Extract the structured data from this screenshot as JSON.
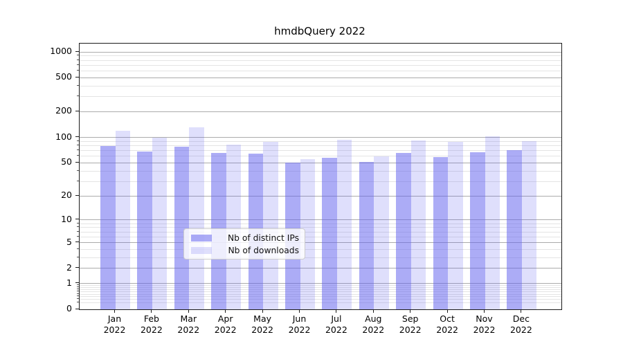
{
  "title": "hmdbQuery 2022",
  "chart_data": {
    "type": "bar",
    "title": "hmdbQuery 2022",
    "categories": [
      "Jan",
      "Feb",
      "Mar",
      "Apr",
      "May",
      "Jun",
      "Jul",
      "Aug",
      "Sep",
      "Oct",
      "Nov",
      "Dec"
    ],
    "x_tick_second_line": "2022",
    "series": [
      {
        "name": "Nb of distinct IPs",
        "color": "rgba(95,95,238,0.52)",
        "values": [
          79,
          68,
          77,
          65,
          64,
          50,
          57,
          51,
          66,
          58,
          67,
          70
        ]
      },
      {
        "name": "Nb of downloads",
        "color": "rgba(95,95,238,0.20)",
        "values": [
          119,
          100,
          131,
          82,
          88,
          55,
          93,
          60,
          92,
          88,
          102,
          90
        ]
      }
    ],
    "y_axis": {
      "scale": "symlog-log1p",
      "range": [
        0,
        1000
      ],
      "major_ticks": [
        0,
        1,
        2,
        5,
        10,
        20,
        50,
        100,
        200,
        500,
        1000
      ],
      "minor_ticks": [
        0.2,
        0.3,
        0.4,
        0.5,
        0.6,
        0.7,
        0.8,
        0.9,
        3,
        4,
        6,
        7,
        8,
        9,
        30,
        40,
        60,
        70,
        80,
        90,
        300,
        400,
        600,
        700,
        800,
        900
      ]
    },
    "grid": "on",
    "legend_position": "lower center",
    "colors": {
      "major_grid": "#ababab",
      "minor_grid": "#e4e4e4",
      "axis": "#1a1a1a",
      "background": "#ffffff"
    }
  }
}
